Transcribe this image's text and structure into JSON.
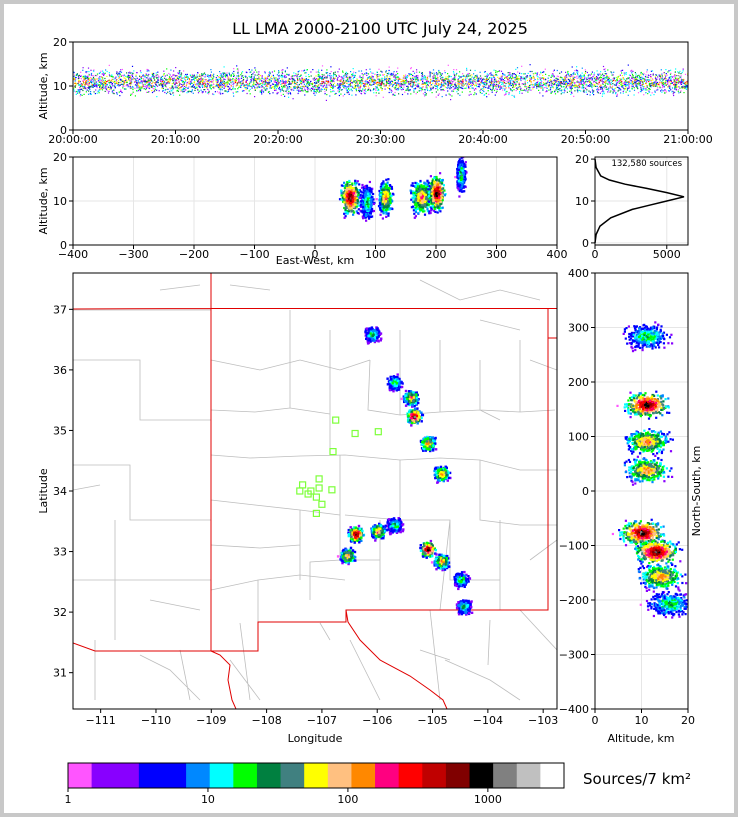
{
  "title": "LL LMA 2000-2100 UTC July 24, 2025",
  "colors": {
    "axes": "#000000",
    "grid": "#e6e6e6",
    "state_border": "#e00000",
    "county_border": "#bdbdbd",
    "station": "#7dff3a",
    "histogram": "#000000"
  },
  "time_panel": {
    "ylabel": "Altitude, km",
    "ylim": [
      0,
      20
    ],
    "yticks": [
      "0",
      "10",
      "20"
    ],
    "xticks": [
      "20:00:00",
      "20:10:00",
      "20:20:00",
      "20:30:00",
      "20:40:00",
      "20:50:00",
      "21:00:00"
    ]
  },
  "ew_panel": {
    "ylabel": "Altitude, km",
    "xlabel": "East-West, km",
    "xlim": [
      -400,
      400
    ],
    "ylim": [
      0,
      20
    ],
    "xticks": [
      "−400",
      "−300",
      "−200",
      "−100",
      "0",
      "100",
      "200",
      "300",
      "400"
    ],
    "yticks": [
      "0",
      "10",
      "20"
    ]
  },
  "hist_panel": {
    "annotation": "132,580 sources",
    "xticks": [
      "0",
      "5000"
    ],
    "yticks": [
      "0",
      "10",
      "20"
    ]
  },
  "map_panel": {
    "xlabel": "Longitude",
    "ylabel": "Latitude",
    "lon_range": [
      -111.5,
      -102.75
    ],
    "lat_range": [
      30.4,
      37.6
    ],
    "xticks": [
      "−111",
      "−110",
      "−109",
      "−108",
      "−107",
      "−106",
      "−105",
      "−104",
      "−103"
    ],
    "yticks": [
      "31",
      "32",
      "33",
      "34",
      "35",
      "36",
      "37"
    ]
  },
  "ns_panel": {
    "xlabel": "Altitude, km",
    "ylabel": "North-South, km",
    "xlim": [
      0,
      20
    ],
    "ylim": [
      -400,
      400
    ],
    "xticks": [
      "0",
      "10",
      "20"
    ],
    "yticks": [
      "−400",
      "−300",
      "−200",
      "−100",
      "0",
      "100",
      "200",
      "300",
      "400"
    ]
  },
  "colorbar": {
    "label": "Sources/7 km²",
    "ticks": [
      "1",
      "10",
      "100",
      "1000"
    ],
    "colors": [
      "#ff55ff",
      "#8800ff",
      "#8800ff",
      "#0000ff",
      "#0000ff",
      "#0088ff",
      "#00ffff",
      "#00ff00",
      "#008040",
      "#408080",
      "#ffff00",
      "#ffc080",
      "#ff8800",
      "#ff0080",
      "#ff0000",
      "#c00000",
      "#800000",
      "#000000",
      "#808080",
      "#c0c0c0",
      "#ffffff"
    ]
  },
  "chart_data": [
    {
      "type": "scatter",
      "name": "time-height",
      "x_range": [
        "20:00:00",
        "21:00:00"
      ],
      "y_range_km": [
        0,
        20
      ],
      "dense_band_km": [
        8,
        16
      ],
      "peak_km": 11
    },
    {
      "type": "heatmap",
      "name": "east-west vs altitude",
      "clusters": [
        {
          "x_km": 57,
          "width_km": 25,
          "alt_km": 11,
          "peak": "high"
        },
        {
          "x_km": 85,
          "width_km": 18,
          "alt_km": 10,
          "peak": "low"
        },
        {
          "x_km": 115,
          "width_km": 18,
          "alt_km": 11,
          "peak": "mid"
        },
        {
          "x_km": 175,
          "width_km": 30,
          "alt_km": 11,
          "peak": "mid"
        },
        {
          "x_km": 200,
          "width_km": 22,
          "alt_km": 12,
          "peak": "high"
        },
        {
          "x_km": 240,
          "width_km": 12,
          "alt_km": 16,
          "peak": "low"
        }
      ]
    },
    {
      "type": "line",
      "name": "source altitude histogram",
      "total_sources": 132580,
      "altitude_km": [
        0,
        2,
        4,
        6,
        8,
        9,
        10,
        11,
        12,
        13,
        14,
        15,
        16,
        18,
        20
      ],
      "count": [
        0,
        80,
        350,
        1100,
        2600,
        3800,
        5000,
        6200,
        5000,
        3600,
        2100,
        1000,
        400,
        80,
        0
      ]
    },
    {
      "type": "heatmap",
      "name": "plan view source density",
      "cells": [
        {
          "lon": -106.1,
          "lat": 36.6,
          "peak": "low"
        },
        {
          "lon": -105.7,
          "lat": 35.8,
          "peak": "low"
        },
        {
          "lon": -105.4,
          "lat": 35.55,
          "peak": "mid"
        },
        {
          "lon": -105.35,
          "lat": 35.25,
          "peak": "high"
        },
        {
          "lon": -105.1,
          "lat": 34.8,
          "peak": "mid"
        },
        {
          "lon": -104.85,
          "lat": 34.3,
          "peak": "mid"
        },
        {
          "lon": -106.4,
          "lat": 33.3,
          "peak": "high"
        },
        {
          "lon": -106.55,
          "lat": 32.95,
          "peak": "mid"
        },
        {
          "lon": -106.0,
          "lat": 33.35,
          "peak": "mid"
        },
        {
          "lon": -105.7,
          "lat": 33.45,
          "peak": "low"
        },
        {
          "lon": -105.1,
          "lat": 33.05,
          "peak": "high"
        },
        {
          "lon": -104.85,
          "lat": 32.85,
          "peak": "mid"
        },
        {
          "lon": -104.5,
          "lat": 32.55,
          "peak": "low"
        },
        {
          "lon": -104.45,
          "lat": 32.1,
          "peak": "low"
        }
      ],
      "stations": [
        {
          "lon": -106.75,
          "lat": 35.17
        },
        {
          "lon": -106.4,
          "lat": 34.95
        },
        {
          "lon": -105.98,
          "lat": 34.98
        },
        {
          "lon": -106.8,
          "lat": 34.65
        },
        {
          "lon": -107.05,
          "lat": 34.2
        },
        {
          "lon": -107.35,
          "lat": 34.1
        },
        {
          "lon": -107.4,
          "lat": 34.0
        },
        {
          "lon": -107.2,
          "lat": 34.0
        },
        {
          "lon": -107.05,
          "lat": 34.05
        },
        {
          "lon": -106.82,
          "lat": 34.02
        },
        {
          "lon": -107.25,
          "lat": 33.95
        },
        {
          "lon": -107.1,
          "lat": 33.9
        },
        {
          "lon": -107.0,
          "lat": 33.78
        },
        {
          "lon": -107.1,
          "lat": 33.63
        }
      ]
    },
    {
      "type": "heatmap",
      "name": "altitude vs north-south",
      "clusters": [
        {
          "alt_km": 11,
          "ns_km": 285,
          "peak": "low"
        },
        {
          "alt_km": 11,
          "ns_km": 160,
          "peak": "high"
        },
        {
          "alt_km": 11,
          "ns_km": 92,
          "peak": "mid"
        },
        {
          "alt_km": 11,
          "ns_km": 40,
          "peak": "mid"
        },
        {
          "alt_km": 10,
          "ns_km": -75,
          "peak": "high"
        },
        {
          "alt_km": 13,
          "ns_km": -110,
          "peak": "high"
        },
        {
          "alt_km": 14,
          "ns_km": -155,
          "peak": "mid"
        },
        {
          "alt_km": 16,
          "ns_km": -205,
          "peak": "low"
        }
      ]
    }
  ]
}
